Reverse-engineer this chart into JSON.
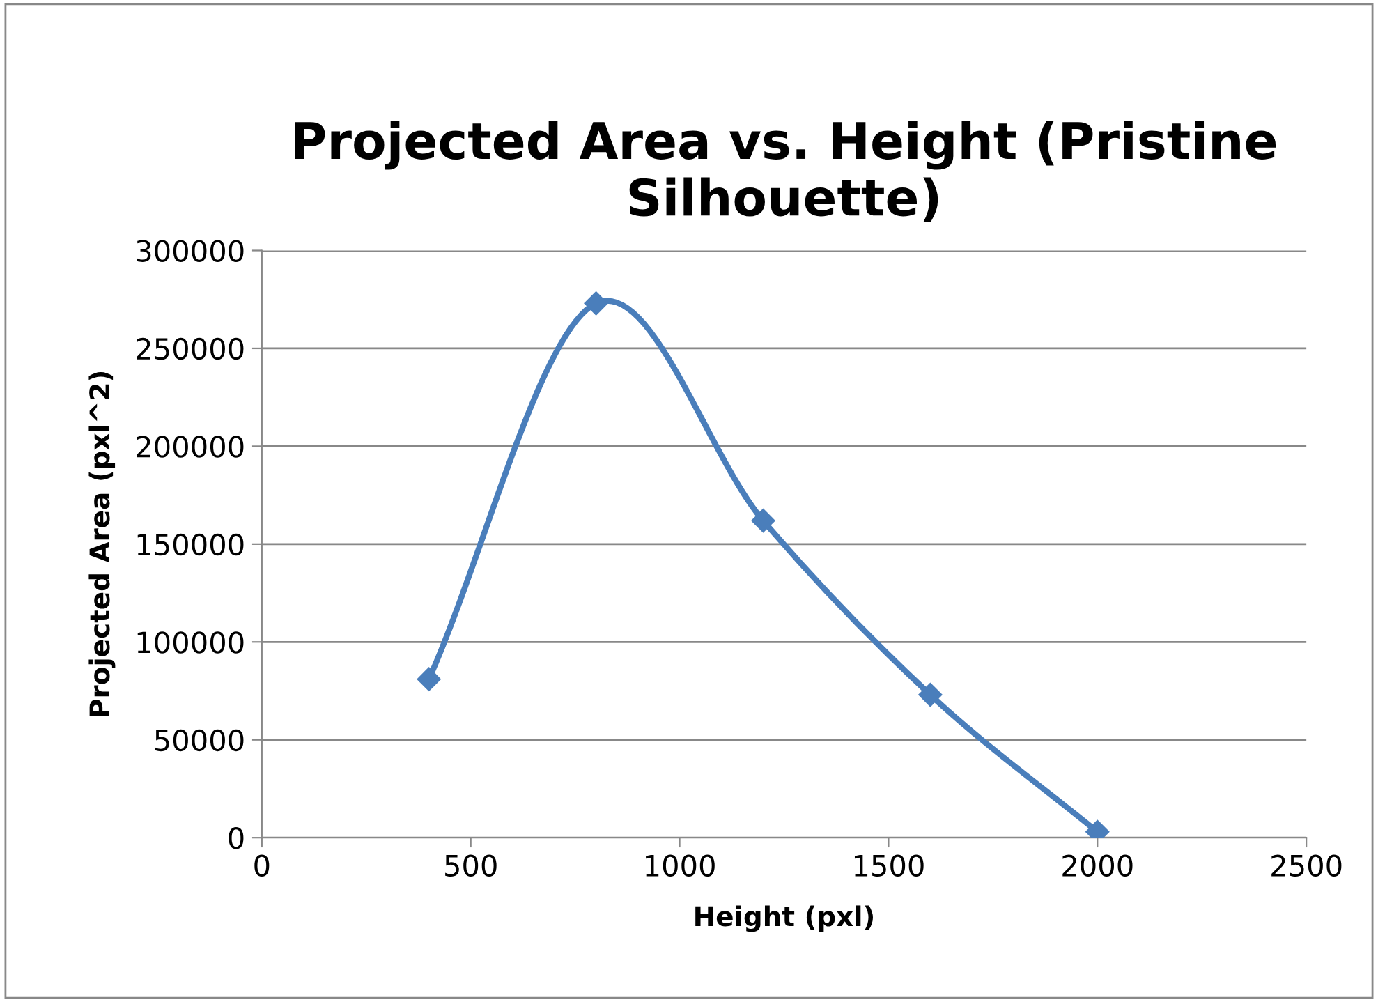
{
  "chart_data": {
    "type": "line",
    "title": "Projected Area vs. Height (Pristine Silhouette)",
    "xlabel": "Height (pxl)",
    "ylabel": "Projected Area (pxl^2)",
    "x": [
      400,
      800,
      1200,
      1600,
      2000
    ],
    "series": [
      {
        "color": "#4a7ebb",
        "values": [
          81000,
          273000,
          162000,
          73000,
          3000
        ]
      }
    ],
    "xlim": [
      0,
      2500
    ],
    "xticks": [
      0,
      500,
      1000,
      1500,
      2000,
      2500
    ],
    "ylim": [
      0,
      300000
    ],
    "yticks": [
      0,
      50000,
      100000,
      150000,
      200000,
      250000,
      300000
    ],
    "grid": "y",
    "marker": "diamond",
    "line_style": "solid",
    "legend": false
  }
}
